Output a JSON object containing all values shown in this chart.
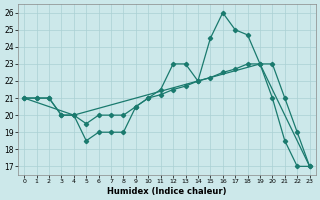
{
  "xlabel": "Humidex (Indice chaleur)",
  "background_color": "#cce8ea",
  "grid_color": "#aad0d4",
  "line_color": "#1a7a6e",
  "xlim": [
    -0.5,
    23.5
  ],
  "ylim": [
    16.5,
    26.5
  ],
  "xticks": [
    0,
    1,
    2,
    3,
    4,
    5,
    6,
    7,
    8,
    9,
    10,
    11,
    12,
    13,
    14,
    15,
    16,
    17,
    18,
    19,
    20,
    21,
    22,
    23
  ],
  "yticks": [
    17,
    18,
    19,
    20,
    21,
    22,
    23,
    24,
    25,
    26
  ],
  "line1_x": [
    0,
    1,
    2,
    3,
    4,
    5,
    6,
    7,
    8,
    9,
    10,
    11,
    12,
    13,
    14,
    15,
    16,
    17,
    18,
    19,
    20,
    21,
    22,
    23
  ],
  "line1_y": [
    21,
    21,
    21,
    20,
    20,
    18.5,
    19,
    19,
    19,
    20.5,
    21,
    21.5,
    23,
    23,
    22,
    24.5,
    26,
    25,
    24.7,
    23,
    21,
    18.5,
    17,
    17
  ],
  "line2_x": [
    0,
    1,
    2,
    3,
    4,
    5,
    6,
    7,
    8,
    9,
    10,
    11,
    12,
    13,
    14,
    15,
    16,
    17,
    18,
    19,
    20,
    21,
    22,
    23
  ],
  "line2_y": [
    21,
    21,
    21,
    20,
    20,
    19.5,
    20,
    20,
    20,
    20.5,
    21,
    21.2,
    21.5,
    21.7,
    22,
    22.2,
    22.5,
    22.7,
    23,
    23,
    23,
    21,
    19,
    17
  ],
  "line3_x": [
    0,
    4,
    14,
    19,
    23
  ],
  "line3_y": [
    21,
    20,
    22,
    23,
    17
  ]
}
